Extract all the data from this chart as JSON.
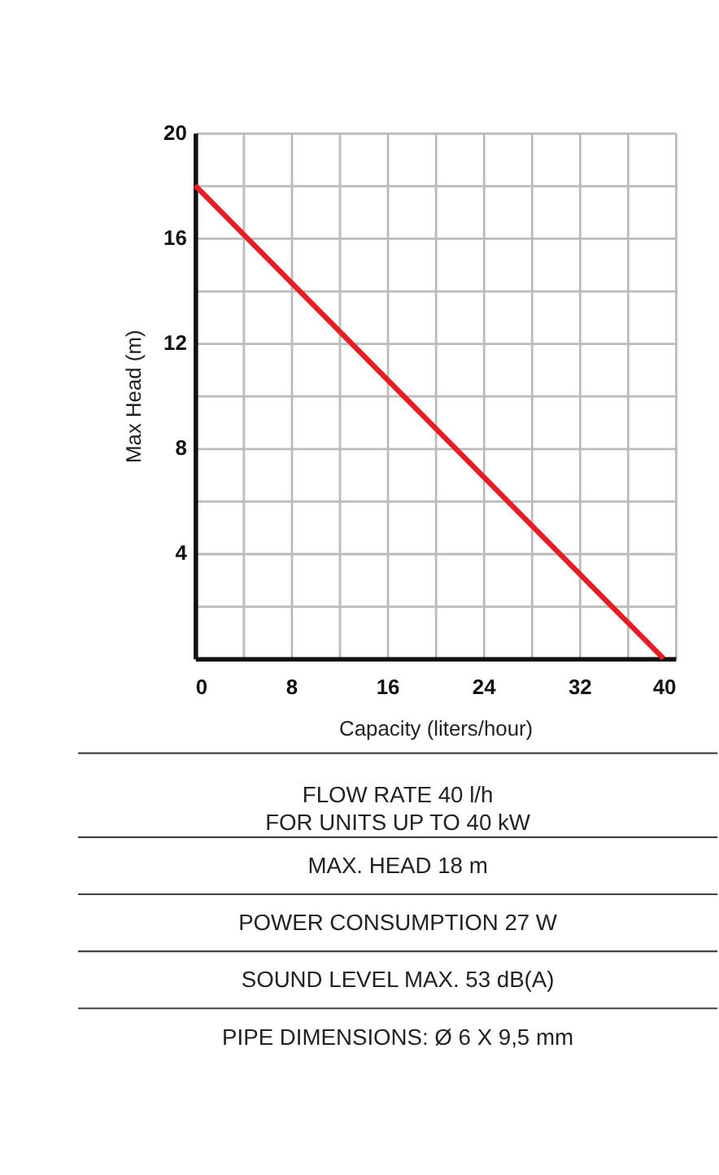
{
  "chart_data": {
    "type": "line",
    "xlabel": "Capacity (liters/hour)",
    "ylabel": "Max Head (m)",
    "series": [
      {
        "x": [
          0,
          39
        ],
        "values": [
          18,
          0
        ],
        "color": "#e31e24"
      }
    ],
    "xlim": [
      0,
      40
    ],
    "ylim": [
      0,
      20
    ],
    "xticks": [
      0,
      {
        "value": 4,
        "label": null
      },
      8,
      {
        "value": 12,
        "label": null
      },
      16,
      {
        "value": 20,
        "label": null
      },
      24,
      {
        "value": 28,
        "label": null
      },
      32,
      {
        "value": 36,
        "label": null
      },
      40
    ],
    "yticks": [
      {
        "value": 0,
        "label": null
      },
      {
        "value": 2,
        "label": null
      },
      4,
      {
        "value": 6,
        "label": null
      },
      8,
      {
        "value": 10,
        "label": null
      },
      12,
      {
        "value": 14,
        "label": null
      },
      16,
      {
        "value": 18,
        "label": null
      },
      20
    ],
    "grid": true,
    "marker": "none",
    "line_style": "solid",
    "annotations": [
      "FLOW RATE 40 l/h\nFOR UNITS UP TO 40 kW",
      "MAX. HEAD 18 m",
      "POWER CONSUMPTION 27 W",
      "SOUND LEVEL MAX. 53 dB(A)",
      "PIPE DIMENSIONS: Ø 6 X 9,5 mm"
    ]
  }
}
